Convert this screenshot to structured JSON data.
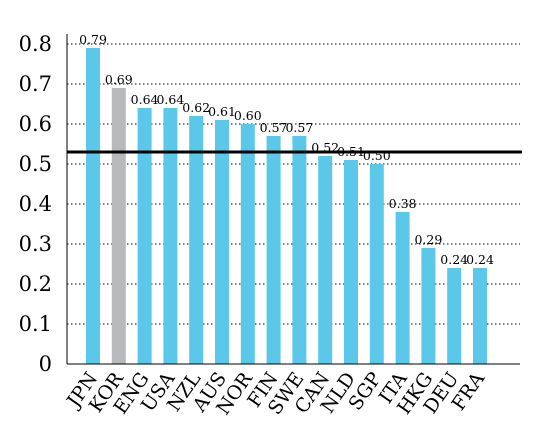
{
  "chart_data": {
    "type": "bar",
    "title": "",
    "xlabel": "",
    "ylabel": "",
    "categories": [
      "JPN",
      "KOR",
      "ENG",
      "USA",
      "NZL",
      "AUS",
      "NOR",
      "FIN",
      "SWE",
      "CAN",
      "NLD",
      "SGP",
      "ITA",
      "HKG",
      "DEU",
      "FRA"
    ],
    "values": [
      0.79,
      0.69,
      0.64,
      0.64,
      0.62,
      0.61,
      0.6,
      0.57,
      0.57,
      0.52,
      0.51,
      0.5,
      0.38,
      0.29,
      0.24,
      0.24
    ],
    "value_labels": [
      "0.79",
      "0.69",
      "0.64",
      "0.64",
      "0.62",
      "0.61",
      "0.60",
      "0.57",
      "0.57",
      "0.52",
      "0.51",
      "0.50",
      "0.38",
      "0.29",
      "0.24",
      "0.24"
    ],
    "highlight_category": "KOR",
    "reference_line": 0.53,
    "ylim": [
      0,
      0.8
    ],
    "yticks": [
      0,
      0.1,
      0.2,
      0.3,
      0.4,
      0.5,
      0.6,
      0.7,
      0.8
    ],
    "ytick_labels": [
      "0",
      "0.1",
      "0.2",
      "0.3",
      "0.4",
      "0.5",
      "0.6",
      "0.7",
      "0.8"
    ],
    "grid": "horizontal dotted",
    "colors": {
      "bar": "#5bc8ea",
      "highlight": "#b8b9bc",
      "reference_line": "#000000",
      "grid": "#000000"
    }
  }
}
